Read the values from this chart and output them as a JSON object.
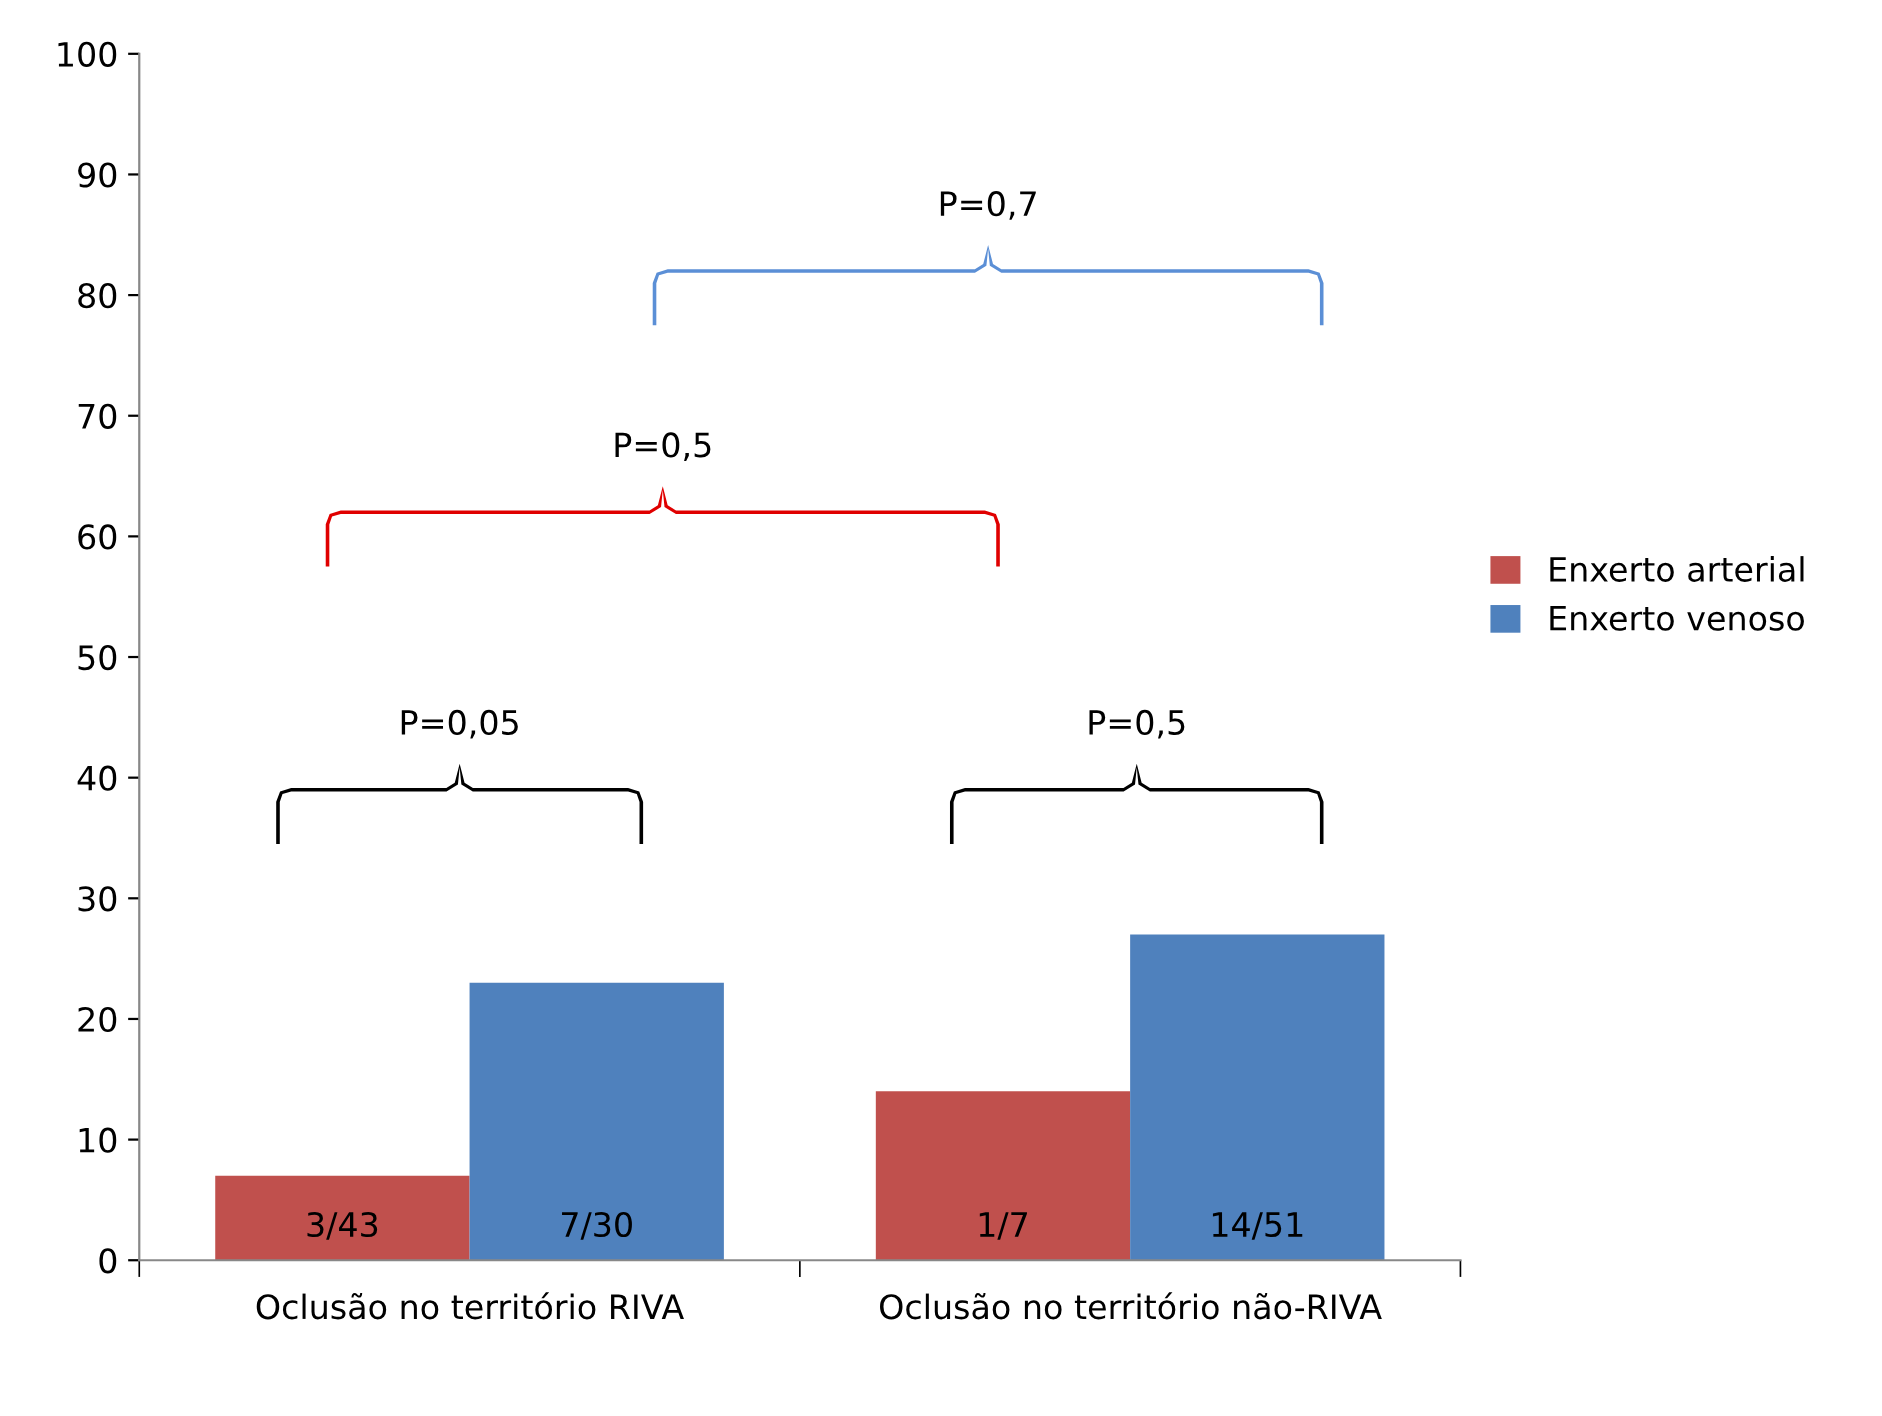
{
  "chart_data": {
    "type": "bar",
    "categories": [
      "Oclusão no território RIVA",
      "Oclusão no território não-RIVA"
    ],
    "series": [
      {
        "name": "Enxerto arterial",
        "color": "#c0504d",
        "values": [
          7,
          14
        ],
        "value_labels": [
          "3/43",
          "1/7"
        ]
      },
      {
        "name": "Enxerto venoso",
        "color": "#4f81bd",
        "values": [
          23,
          27
        ],
        "value_labels": [
          "7/30",
          "14/51"
        ]
      }
    ],
    "ylim": [
      0,
      100
    ],
    "yticks": [
      0,
      10,
      20,
      30,
      40,
      50,
      60,
      70,
      80,
      90,
      100
    ],
    "grid": false,
    "legend": "right",
    "annotations": [
      "P=0,05",
      "P=0,5",
      "P=0,5",
      "P=0,7"
    ]
  }
}
